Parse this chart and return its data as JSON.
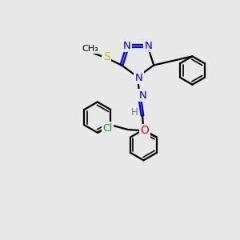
{
  "bg_color": "#e8e8e8",
  "bond_color": "#000000",
  "bond_width": 1.6,
  "dbo": 0.055,
  "atom_colors": {
    "N": "#0000ee",
    "S": "#bbbb00",
    "O": "#ee0000",
    "Cl": "#00aa00",
    "C": "#000000",
    "H": "#777777"
  },
  "font_size": 8.5
}
